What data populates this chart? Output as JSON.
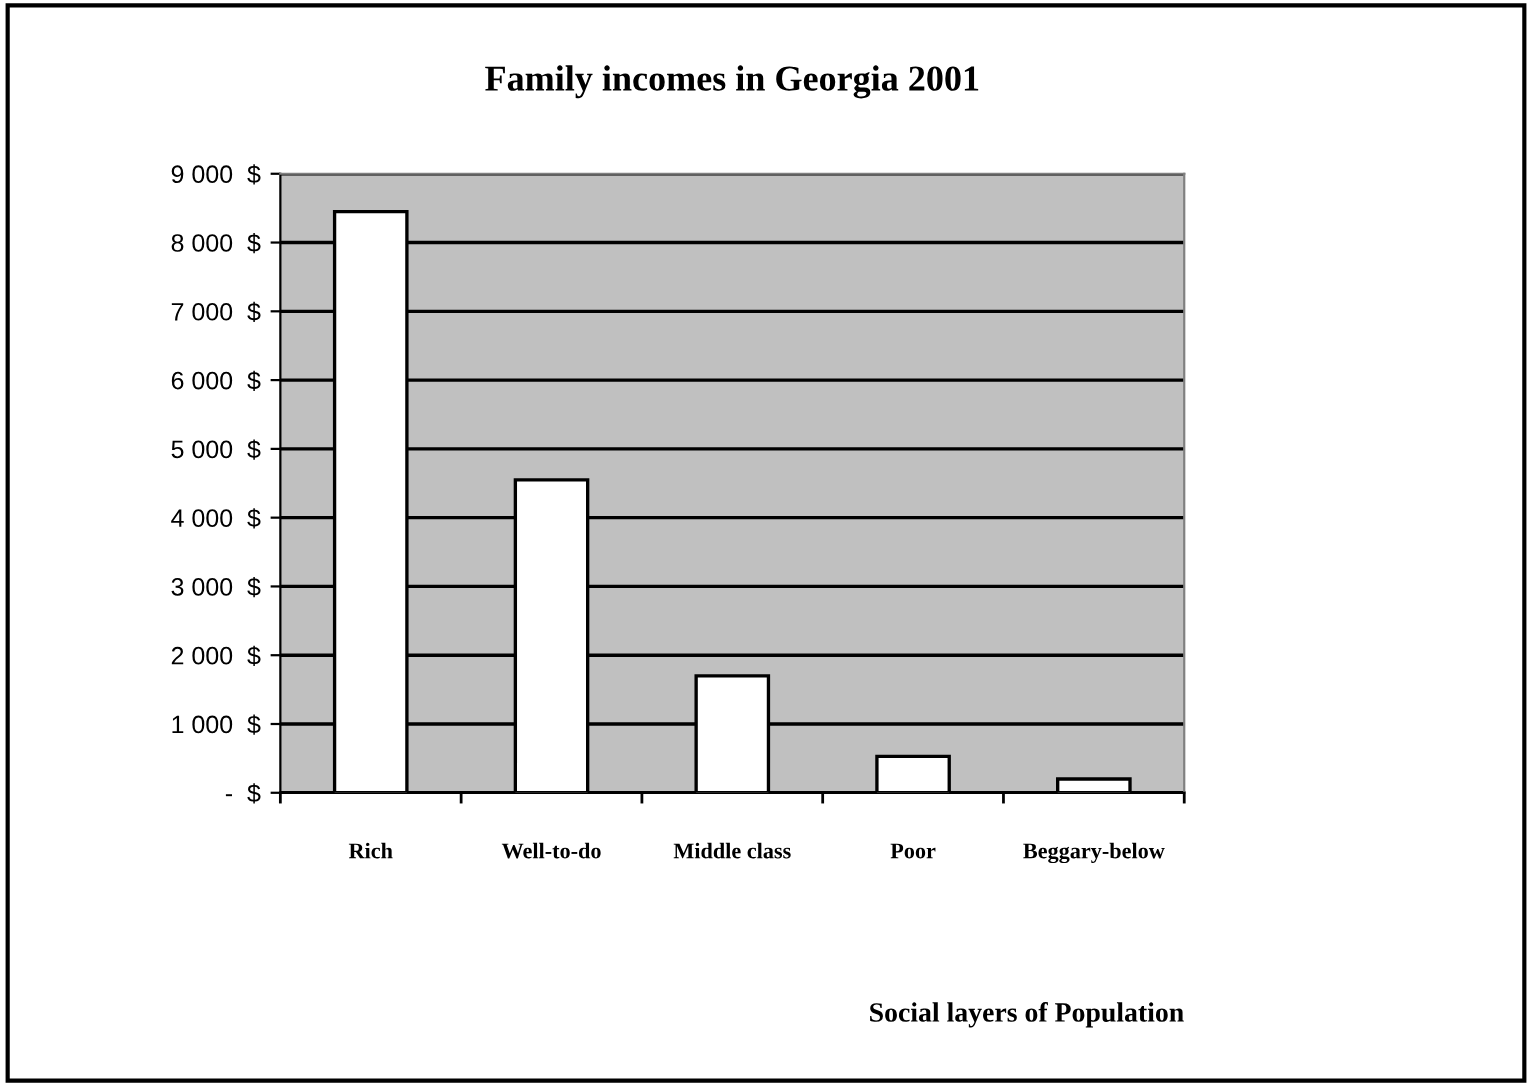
{
  "chart_data": {
    "type": "bar",
    "title": "Family incomes in Georgia 2001",
    "xlabel": "Social layers of Population",
    "categories": [
      "Rich",
      "Well-to-do",
      "Middle class",
      "Poor",
      "Beggary-below"
    ],
    "values": [
      8450,
      4550,
      1700,
      530,
      200
    ],
    "color": "#ffffff",
    "ylim": [
      0,
      9000
    ],
    "yticks": [
      {
        "value": 0,
        "label": "-  $"
      },
      {
        "value": 1000,
        "label": "1 000  $"
      },
      {
        "value": 2000,
        "label": "2 000  $"
      },
      {
        "value": 3000,
        "label": "3 000  $"
      },
      {
        "value": 4000,
        "label": "4 000  $"
      },
      {
        "value": 5000,
        "label": "5 000  $"
      },
      {
        "value": 6000,
        "label": "6 000  $"
      },
      {
        "value": 7000,
        "label": "7 000  $"
      },
      {
        "value": 8000,
        "label": "8 000  $"
      },
      {
        "value": 9000,
        "label": "9 000  $"
      }
    ],
    "grid": "y"
  }
}
